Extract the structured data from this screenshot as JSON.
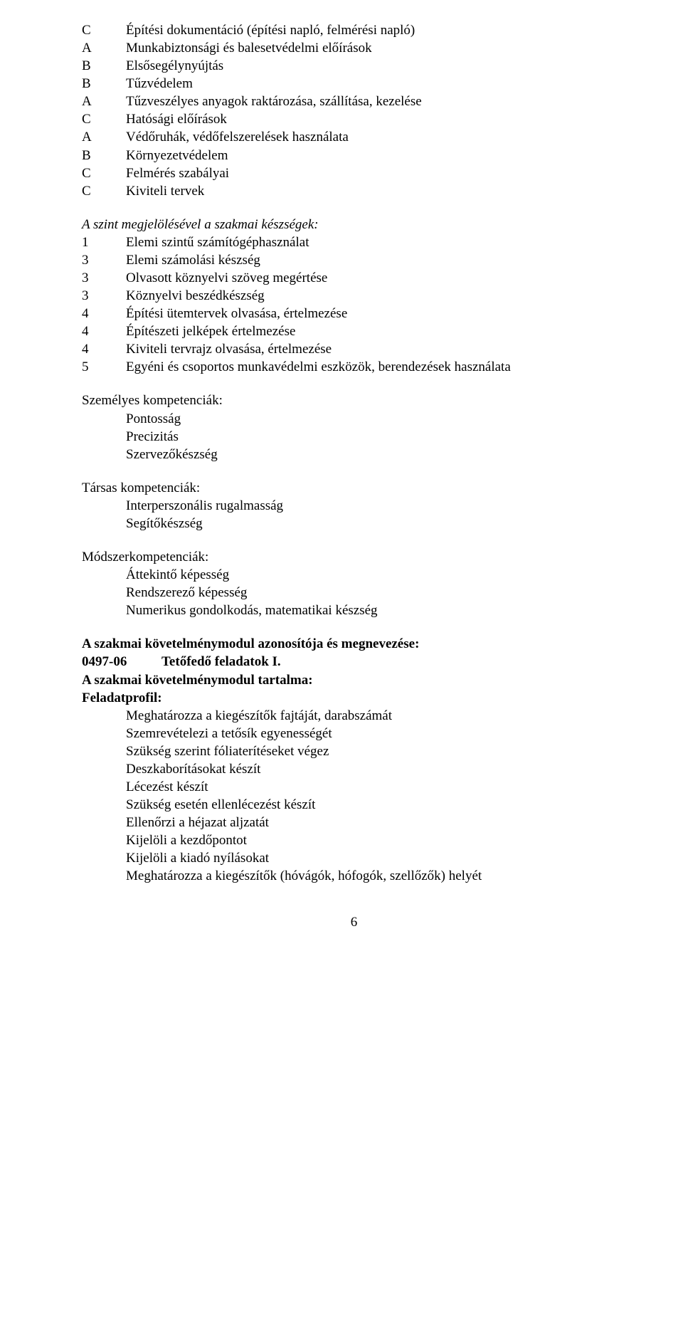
{
  "knowledge_list": {
    "items": [
      {
        "level": "C",
        "text": "Építési dokumentáció (építési napló, felmérési napló)"
      },
      {
        "level": "A",
        "text": "Munkabiztonsági és balesetvédelmi előírások"
      },
      {
        "level": "B",
        "text": "Elsősegélynyújtás"
      },
      {
        "level": "B",
        "text": "Tűzvédelem"
      },
      {
        "level": "A",
        "text": "Tűzveszélyes anyagok raktározása, szállítása, kezelése"
      },
      {
        "level": "C",
        "text": "Hatósági előírások"
      },
      {
        "level": "A",
        "text": "Védőruhák, védőfelszerelések használata"
      },
      {
        "level": "B",
        "text": "Környezetvédelem"
      },
      {
        "level": "C",
        "text": "Felmérés szabályai"
      },
      {
        "level": "C",
        "text": "Kiviteli tervek"
      }
    ]
  },
  "skills": {
    "heading": "A szint megjelölésével a szakmai készségek:",
    "items": [
      {
        "level": "1",
        "text": "Elemi szintű számítógéphasználat"
      },
      {
        "level": "3",
        "text": "Elemi számolási készség"
      },
      {
        "level": "3",
        "text": "Olvasott köznyelvi szöveg megértése"
      },
      {
        "level": "3",
        "text": "Köznyelvi beszédkészség"
      },
      {
        "level": "4",
        "text": "Építési ütemtervek olvasása, értelmezése"
      },
      {
        "level": "4",
        "text": "Építészeti jelképek értelmezése"
      },
      {
        "level": "4",
        "text": "Kiviteli tervrajz olvasása, értelmezése"
      },
      {
        "level": "5",
        "text": "Egyéni és csoportos munkavédelmi eszközök, berendezések használata"
      }
    ]
  },
  "personal": {
    "heading": "Személyes kompetenciák:",
    "items": [
      "Pontosság",
      "Precizitás",
      "Szervezőkészség"
    ]
  },
  "social": {
    "heading": "Társas kompetenciák:",
    "items": [
      "Interperszonális rugalmasság",
      "Segítőkészség"
    ]
  },
  "method": {
    "heading": "Módszerkompetenciák:",
    "items": [
      "Áttekintő képesség",
      "Rendszerező képesség",
      "Numerikus gondolkodás, matematikai készség"
    ]
  },
  "module": {
    "line1": "A szakmai követelménymodul azonosítója és megnevezése:",
    "code": "0497-06",
    "name": "Tetőfedő feladatok I.",
    "line2": "A szakmai követelménymodul tartalma:",
    "line3": "Feladatprofil:",
    "tasks": [
      "Meghatározza a kiegészítők fajtáját, darabszámát",
      "Szemrevételezi a tetősík egyenességét",
      "Szükség szerint fóliaterítéseket végez",
      "Deszkaborításokat készít",
      "Lécezést készít",
      "Szükség esetén ellenlécezést készít",
      "Ellenőrzi a héjazat aljzatát",
      "Kijelöli a kezdőpontot",
      "Kijelöli a kiadó nyílásokat",
      "Meghatározza a kiegészítők (hóvágók, hófogók, szellőzők) helyét"
    ]
  },
  "page_number": "6"
}
